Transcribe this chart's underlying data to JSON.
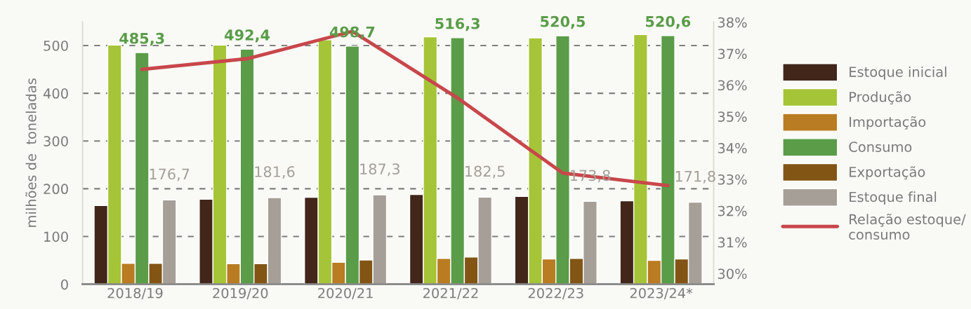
{
  "chart_data": {
    "type": "bar",
    "ylabel": "milhões de  toneladas",
    "categories": [
      "2018/19",
      "2019/20",
      "2020/21",
      "2021/22",
      "2022/23",
      "2023/24*"
    ],
    "series": [
      {
        "name": "Estoque inicial",
        "color": "#42261a",
        "values": [
          165,
          178,
          182,
          188,
          184,
          175
        ]
      },
      {
        "name": "Produção",
        "color": "#a6c437",
        "values": [
          501,
          501,
          512,
          518,
          516,
          523
        ]
      },
      {
        "name": "Importação",
        "color": "#b97c22",
        "values": [
          44,
          43,
          46,
          54,
          53,
          50
        ]
      },
      {
        "name": "Consumo",
        "color": "#5a9c48",
        "values": [
          485.3,
          492.4,
          498.7,
          516.3,
          520.5,
          520.6
        ],
        "value_labels": [
          "485,3",
          "492,4",
          "498,7",
          "516,3",
          "520,5",
          "520,6"
        ]
      },
      {
        "name": "Exportação",
        "color": "#825515",
        "values": [
          44,
          43,
          51,
          57,
          54,
          53
        ]
      },
      {
        "name": "Estoque final",
        "color": "#a59f98",
        "values": [
          176.7,
          181.6,
          187.3,
          182.5,
          173.8,
          171.8
        ],
        "value_labels": [
          "176,7",
          "181,6",
          "187,3",
          "182,5",
          "173,8",
          "171,8"
        ]
      },
      {
        "name": "Relação estoque/\nconsumo",
        "type": "line",
        "axis": "y2",
        "color": "#c8474b",
        "values": [
          36.5,
          36.84,
          37.71,
          35.59,
          33.2,
          32.8
        ]
      }
    ],
    "ylim": [
      0,
      550
    ],
    "yticks": [
      0,
      100,
      200,
      300,
      400,
      500
    ],
    "y2lim": [
      29.66,
      38.02
    ],
    "y2ticks": [
      {
        "value": 30,
        "label": "30%"
      },
      {
        "value": 31,
        "label": "31%"
      },
      {
        "value": 32,
        "label": "32%"
      },
      {
        "value": 33,
        "label": "33%"
      },
      {
        "value": 34,
        "label": "34%"
      },
      {
        "value": 35,
        "label": "35%"
      },
      {
        "value": 36,
        "label": "36%"
      },
      {
        "value": 37,
        "label": "37%"
      },
      {
        "value": 38,
        "label": "38%"
      }
    ],
    "grid": "y",
    "legend": "right",
    "marker": "none",
    "line_style": "solid"
  }
}
